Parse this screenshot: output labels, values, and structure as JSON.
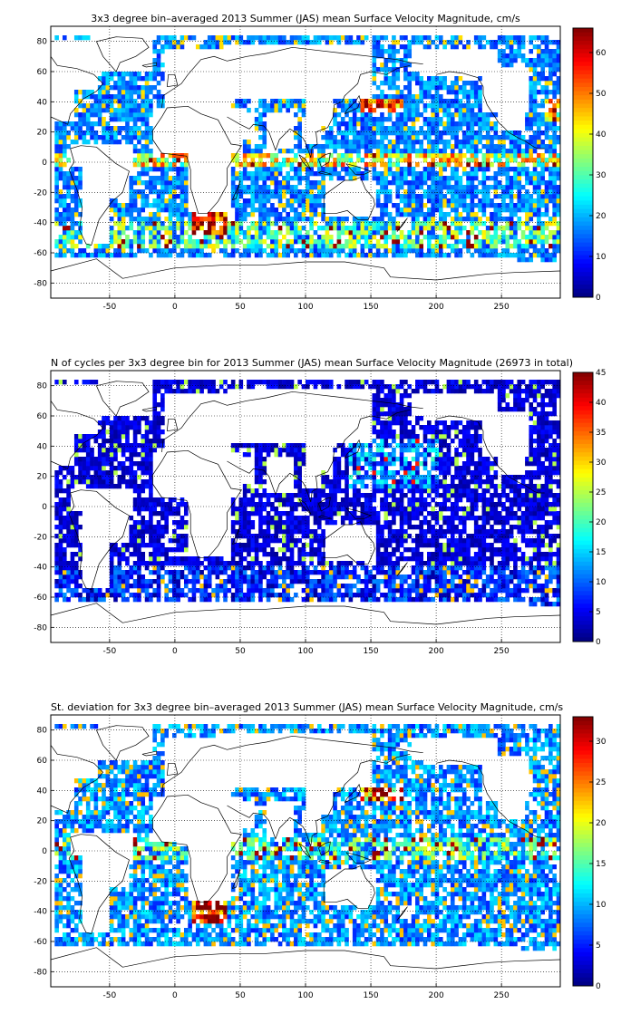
{
  "chart_data": [
    {
      "type": "heatmap",
      "title": "3x3 degree bin–averaged 2013 Summer (JAS) mean Surface Velocity Magnitude, cm/s",
      "xlim": [
        -95,
        295
      ],
      "ylim": [
        -90,
        90
      ],
      "xticks": [
        "-50",
        "0",
        "50",
        "100",
        "150",
        "200",
        "250"
      ],
      "yticks": [
        "80",
        "60",
        "40",
        "20",
        "0",
        "-20",
        "-40",
        "-60",
        "-80"
      ],
      "grid": true,
      "colorbar": {
        "range": [
          0,
          66
        ],
        "ticks": [
          "60",
          "50",
          "40",
          "30",
          "20",
          "10",
          "0"
        ],
        "colormap": "jet"
      },
      "pattern": "speed"
    },
    {
      "type": "heatmap",
      "title": "N of cycles per 3x3 degree bin for 2013 Summer (JAS) mean Surface Velocity Magnitude (26973 in total)",
      "xlim": [
        -95,
        295
      ],
      "ylim": [
        -90,
        90
      ],
      "xticks": [
        "-50",
        "0",
        "50",
        "100",
        "150",
        "200",
        "250"
      ],
      "yticks": [
        "80",
        "60",
        "40",
        "20",
        "0",
        "-20",
        "-40",
        "-60",
        "-80"
      ],
      "grid": true,
      "colorbar": {
        "range": [
          0,
          45
        ],
        "ticks": [
          "45",
          "40",
          "35",
          "30",
          "25",
          "20",
          "15",
          "10",
          "5",
          "0"
        ],
        "colormap": "jet"
      },
      "pattern": "count"
    },
    {
      "type": "heatmap",
      "title": "St. deviation for 3x3 degree bin–averaged 2013 Summer (JAS) mean Surface Velocity Magnitude, cm/s",
      "xlim": [
        -95,
        295
      ],
      "ylim": [
        -90,
        90
      ],
      "xticks": [
        "-50",
        "0",
        "50",
        "100",
        "150",
        "200",
        "250"
      ],
      "yticks": [
        "80",
        "60",
        "40",
        "20",
        "0",
        "-20",
        "-40",
        "-60",
        "-80"
      ],
      "grid": true,
      "colorbar": {
        "range": [
          0,
          33
        ],
        "ticks": [
          "30",
          "25",
          "20",
          "15",
          "10",
          "5",
          "0"
        ],
        "colormap": "jet"
      },
      "pattern": "std"
    }
  ]
}
